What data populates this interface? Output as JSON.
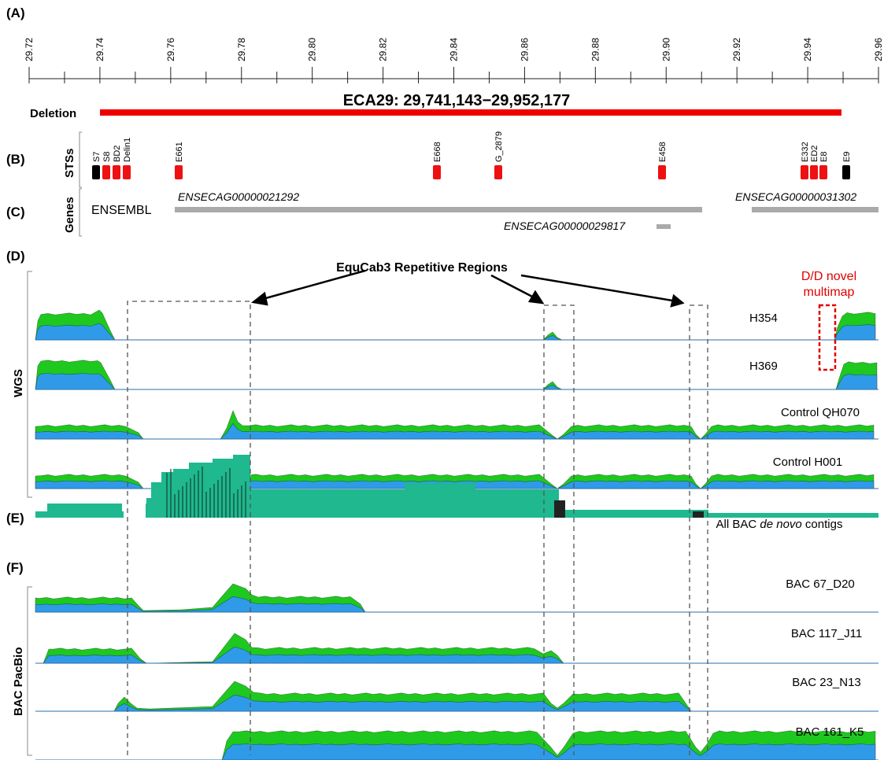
{
  "panels": {
    "A": "(A)",
    "B": "(B)",
    "C": "(C)",
    "D": "(D)",
    "E": "(E)",
    "F": "(F)"
  },
  "axis": {
    "min": 29.72,
    "max": 29.96,
    "ticks": [
      "29.72",
      "29.74",
      "29.76",
      "29.78",
      "29.80",
      "29.82",
      "29.84",
      "29.86",
      "29.88",
      "29.90",
      "29.92",
      "29.94",
      "29.96"
    ]
  },
  "deletion": {
    "label": "Deletion",
    "region": "ECA29: 29,741,143−29,952,177",
    "color": "#ee0000"
  },
  "sts": {
    "side_label": "STSs",
    "markers": [
      {
        "name": "S7",
        "color": "#000000"
      },
      {
        "name": "S8",
        "color": "#ee1111"
      },
      {
        "name": "BD2",
        "color": "#ee1111"
      },
      {
        "name": "Delin1",
        "color": "#ee1111"
      },
      {
        "name": "E661",
        "color": "#ee1111"
      },
      {
        "name": "E668",
        "color": "#ee1111"
      },
      {
        "name": "G_2879",
        "color": "#ee1111"
      },
      {
        "name": "E458",
        "color": "#ee1111"
      },
      {
        "name": "E332",
        "color": "#ee1111"
      },
      {
        "name": "ED2",
        "color": "#ee1111"
      },
      {
        "name": "E8",
        "color": "#ee1111"
      },
      {
        "name": "E9",
        "color": "#000000"
      }
    ]
  },
  "genes": {
    "side_label": "Genes",
    "source": "ENSEMBL",
    "items": [
      {
        "name": "ENSECAG00000021292"
      },
      {
        "name": "ENSECAG00000029817"
      },
      {
        "name": "ENSECAG00000031302"
      }
    ]
  },
  "wgs": {
    "side_label": "WGS",
    "repetitive_label": "EquCab3 Repetitive Regions",
    "novel_label_1": "D/D novel",
    "novel_label_2": "multimap",
    "tracks": [
      {
        "name": "H354"
      },
      {
        "name": "H369"
      },
      {
        "name": "Control QH070"
      },
      {
        "name": "Control H001"
      }
    ]
  },
  "bac_contigs": {
    "label_pre": "All BAC ",
    "label_it": "de novo",
    "label_post": " contigs"
  },
  "pacbio": {
    "side_label": "BAC PacBio",
    "tracks": [
      {
        "name": "BAC 67_D20"
      },
      {
        "name": "BAC 117_J11"
      },
      {
        "name": "BAC 23_N13"
      },
      {
        "name": "BAC 161_K5"
      }
    ]
  },
  "colors": {
    "green": "#1fc81f",
    "blue": "#2f9be8",
    "teal": "#1fb88f",
    "gene": "#aaaaaa"
  }
}
